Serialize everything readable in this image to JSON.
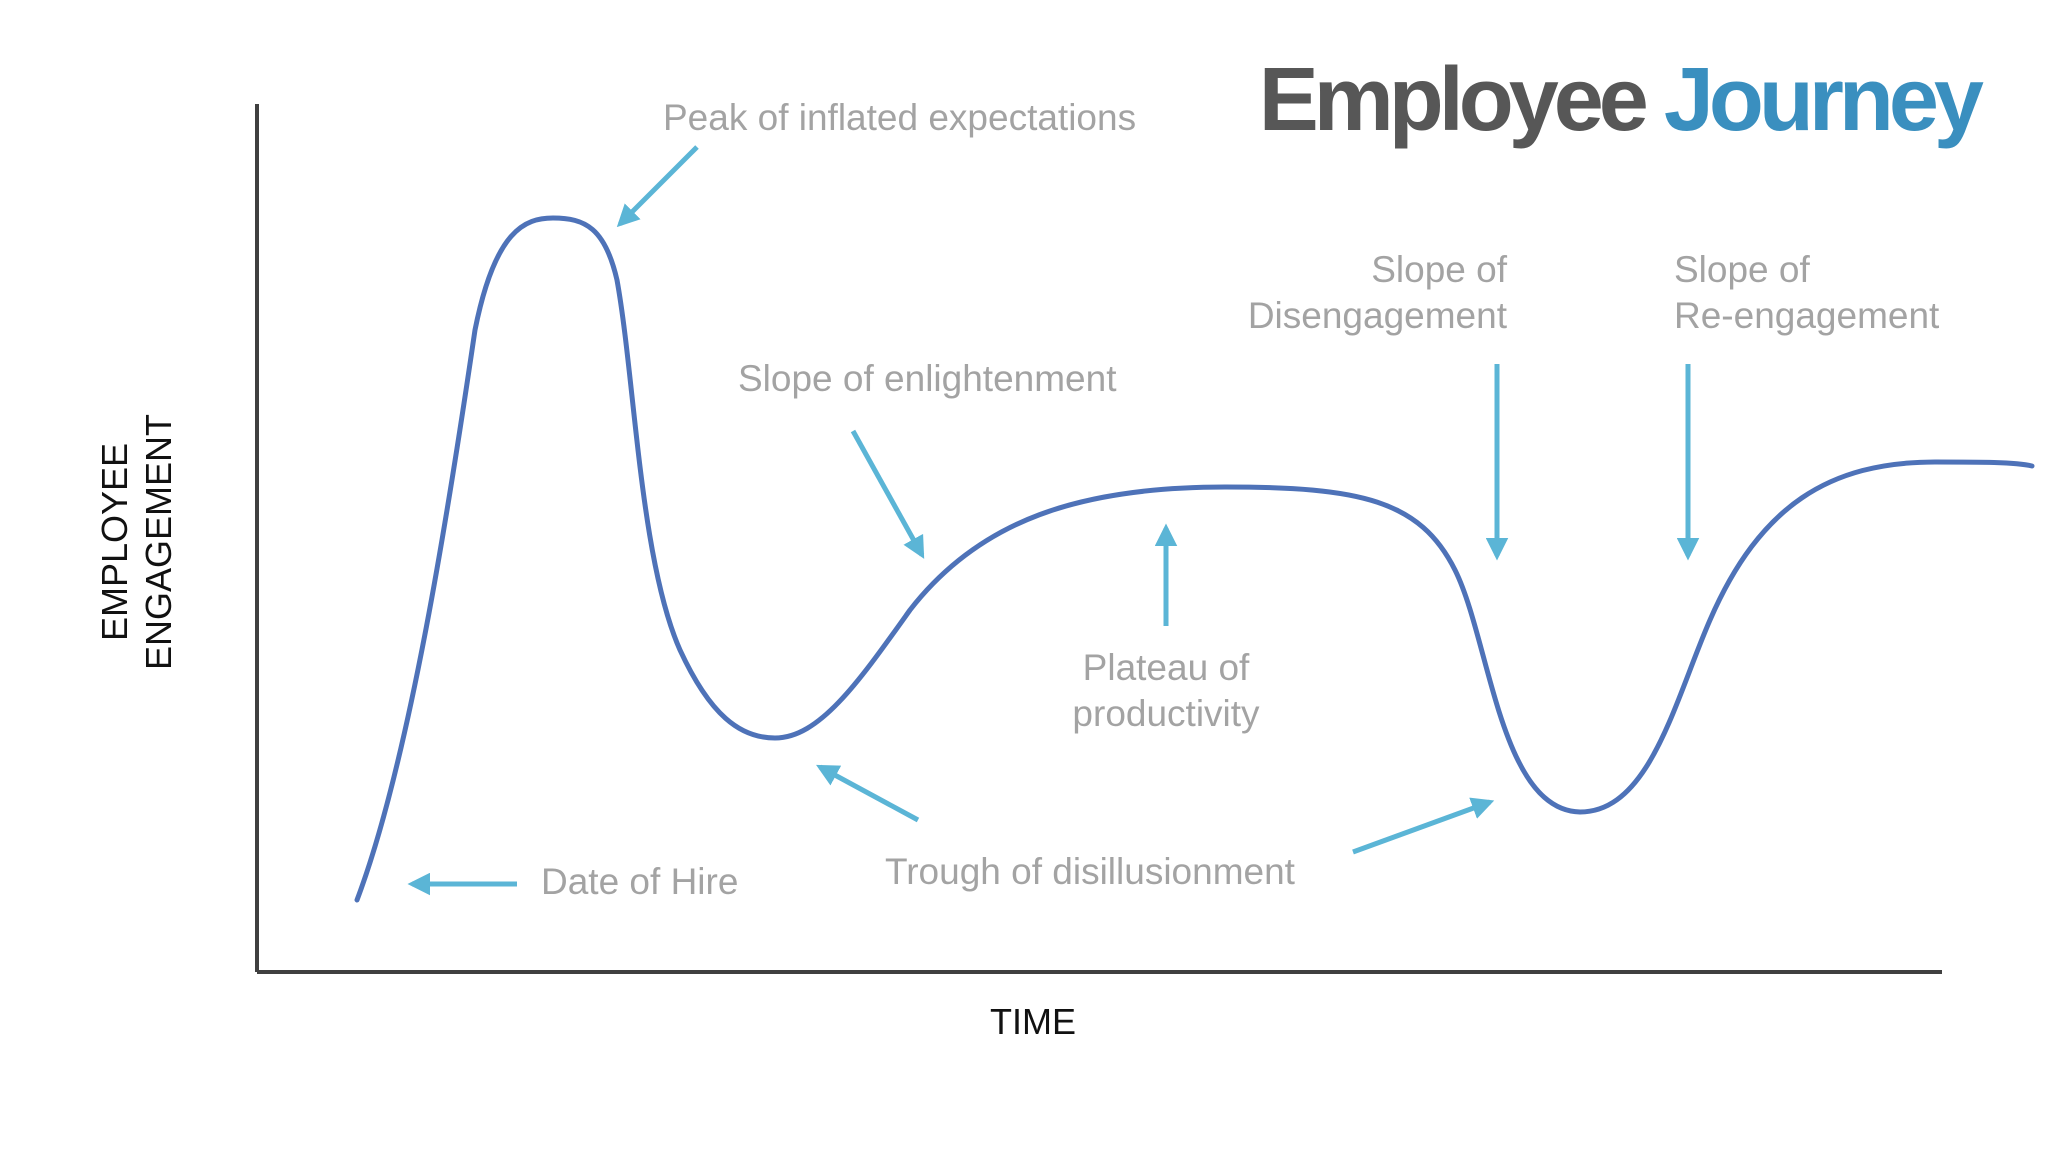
{
  "title": {
    "main": "Employee Journey",
    "accent_word": "Journey",
    "main_color": "#575757",
    "accent_color": "#3a8fbf"
  },
  "axes": {
    "y_label_line1": "EMPLOYEE",
    "y_label_line2": "ENGAGEMENT",
    "x_label": "TIME"
  },
  "annotations": {
    "peak": "Peak of inflated expectations",
    "enlightenment": "Slope of enlightenment",
    "disengagement_line1": "Slope of",
    "disengagement_line2": "Disengagement",
    "reengagement_line1": "Slope of",
    "reengagement_line2": "Re-engagement",
    "plateau_line1": "Plateau of",
    "plateau_line2": "productivity",
    "date_of_hire": "Date of Hire",
    "trough": "Trough of disillusionment"
  },
  "colors": {
    "curve": "#4e72b8",
    "arrows": "#5bb5d6",
    "annotation_text": "#a3a3a3",
    "axes": "#404040"
  },
  "icons": {
    "arrow": "arrow-icon"
  }
}
